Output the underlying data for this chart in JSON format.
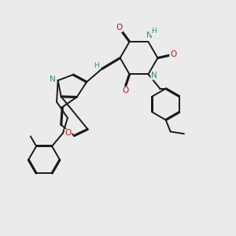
{
  "bg_color": "#ebebeb",
  "bond_color": "#1a1a1a",
  "atom_colors": {
    "N": "#2e8b8b",
    "O": "#cc1111",
    "H": "#2e8b8b",
    "C": "#1a1a1a"
  },
  "linewidth": 1.4,
  "dbo": 0.018
}
